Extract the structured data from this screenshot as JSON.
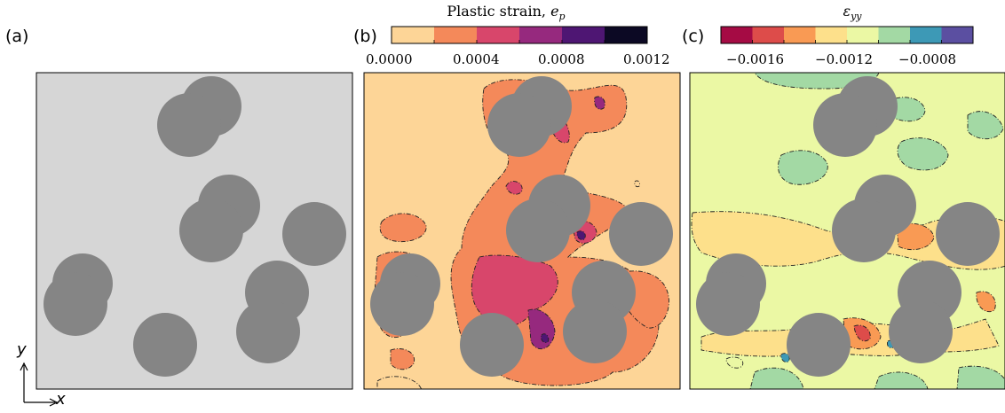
{
  "figure": {
    "panels": [
      {
        "letter": "(a)"
      },
      {
        "letter": "(b)",
        "colorbar_title": "Plastic strain, ",
        "colorbar_symbol": "e",
        "colorbar_subscript": "p",
        "ticks": [
          "0.0000",
          "0.0004",
          "0.0008",
          "0.0012"
        ],
        "colors": [
          "#fdd597",
          "#f4895a",
          "#d8466b",
          "#96297e",
          "#4e1673",
          "#0c0924"
        ]
      },
      {
        "letter": "(c)",
        "colorbar_symbol": "ε",
        "colorbar_subscript": "yy",
        "ticks": [
          "−0.0016",
          "−0.0012",
          "−0.0008"
        ],
        "colors": [
          "#a50b44",
          "#dd4c4a",
          "#f99a54",
          "#fde08b",
          "#ebf8a4",
          "#a3d9a4",
          "#3d99b6",
          "#5b4fa1"
        ]
      }
    ],
    "axes": {
      "x": "x",
      "y": "y"
    },
    "colors": {
      "particle": "#858585",
      "matrix_a": "#d6d6d6",
      "matrix_b": "#fdd597",
      "matrix_c": "#ebf8a4"
    }
  }
}
